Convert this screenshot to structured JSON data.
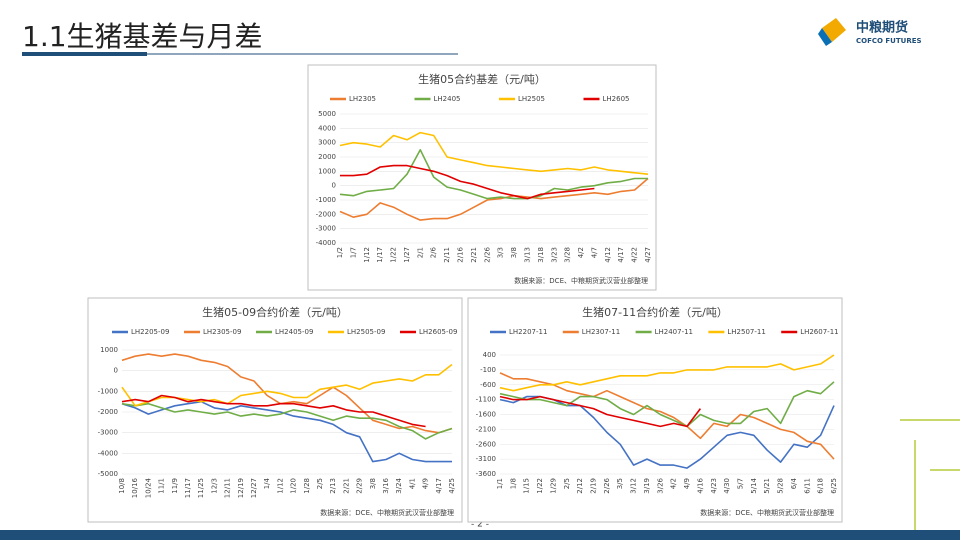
{
  "header": {
    "title": "1.1生猪基差与月差",
    "logo_cn": "中粮期货",
    "logo_en": "COFCO FUTURES",
    "page": "- 2 -"
  },
  "chart_data": [
    {
      "type": "line",
      "title": "生猪05合约基差（元/吨）",
      "source": "数据来源：DCE、中粮期货武汉营业部整理",
      "categories": [
        "1/2",
        "1/7",
        "1/12",
        "1/17",
        "1/22",
        "1/27",
        "2/1",
        "2/6",
        "2/11",
        "2/16",
        "2/21",
        "2/26",
        "3/3",
        "3/8",
        "3/13",
        "3/18",
        "3/23",
        "3/28",
        "4/2",
        "4/7",
        "4/12",
        "4/17",
        "4/22",
        "4/27"
      ],
      "ylim": [
        -4000,
        5000
      ],
      "yticks": [
        5000,
        4000,
        3000,
        2000,
        1000,
        0,
        -1000,
        -2000,
        -3000,
        -4000
      ],
      "series": [
        {
          "name": "LH2305",
          "color": "#ed7d31",
          "values": [
            -1800,
            -2200,
            -2000,
            -1200,
            -1500,
            -2000,
            -2400,
            -2300,
            -2300,
            -2000,
            -1500,
            -1000,
            -900,
            -700,
            -800,
            -900,
            -800,
            -700,
            -600,
            -500,
            -600,
            -400,
            -300,
            500
          ]
        },
        {
          "name": "LH2405",
          "color": "#70ad47",
          "values": [
            -600,
            -700,
            -400,
            -300,
            -200,
            800,
            2500,
            600,
            -100,
            -300,
            -600,
            -900,
            -800,
            -900,
            -900,
            -700,
            -200,
            -300,
            -100,
            0,
            200,
            300,
            500,
            500
          ]
        },
        {
          "name": "LH2505",
          "color": "#ffc000",
          "values": [
            2800,
            3000,
            2900,
            2700,
            3500,
            3200,
            3700,
            3500,
            2000,
            1800,
            1600,
            1400,
            1300,
            1200,
            1100,
            1000,
            1100,
            1200,
            1100,
            1300,
            1100,
            1000,
            900,
            800
          ]
        },
        {
          "name": "LH2605",
          "color": "#e00000",
          "values": [
            700,
            700,
            800,
            1300,
            1400,
            1400,
            1200,
            1000,
            700,
            300,
            100,
            -200,
            -500,
            -700,
            -900,
            -600,
            -500,
            -400,
            -300,
            -200,
            null,
            null,
            null,
            null
          ]
        }
      ]
    },
    {
      "type": "line",
      "title": "生猪05-09合约价差（元/吨）",
      "source": "数据来源：DCE、中粮期货武汉营业部整理",
      "categories": [
        "10/8",
        "10/16",
        "10/24",
        "11/1",
        "11/9",
        "11/17",
        "11/25",
        "12/3",
        "12/11",
        "12/19",
        "12/27",
        "1/4",
        "1/12",
        "1/20",
        "1/28",
        "2/5",
        "2/13",
        "2/21",
        "2/29",
        "3/8",
        "3/16",
        "3/24",
        "4/1",
        "4/9",
        "4/17",
        "4/25"
      ],
      "ylim": [
        -5000,
        1000
      ],
      "yticks": [
        1000,
        0,
        -1000,
        -2000,
        -3000,
        -4000,
        -5000
      ],
      "series": [
        {
          "name": "LH2205-09",
          "color": "#4472c4",
          "values": [
            -1600,
            -1800,
            -2100,
            -1900,
            -1700,
            -1600,
            -1500,
            -1800,
            -1900,
            -1700,
            -1800,
            -1900,
            -2000,
            -2200,
            -2300,
            -2400,
            -2600,
            -3000,
            -3200,
            -4400,
            -4300,
            -4000,
            -4300,
            -4400,
            -4400,
            -4400
          ]
        },
        {
          "name": "LH2305-09",
          "color": "#ed7d31",
          "values": [
            500,
            700,
            800,
            700,
            800,
            700,
            500,
            400,
            200,
            -300,
            -500,
            -1200,
            -1600,
            -1500,
            -1600,
            -1200,
            -800,
            -1200,
            -1800,
            -2400,
            -2600,
            -2800,
            -2700,
            -2900,
            -3000,
            -2800
          ]
        },
        {
          "name": "LH2405-09",
          "color": "#70ad47",
          "values": [
            -1600,
            -1700,
            -1600,
            -1800,
            -2000,
            -1900,
            -2000,
            -2100,
            -2000,
            -2200,
            -2100,
            -2200,
            -2100,
            -1900,
            -2000,
            -2200,
            -2400,
            -2200,
            -2300,
            -2300,
            -2400,
            -2700,
            -2900,
            -3300,
            -3000,
            -2800
          ]
        },
        {
          "name": "LH2505-09",
          "color": "#ffc000",
          "values": [
            -800,
            -1700,
            -1500,
            -1300,
            -1300,
            -1400,
            -1500,
            -1400,
            -1600,
            -1200,
            -1100,
            -1000,
            -1100,
            -1300,
            -1300,
            -900,
            -800,
            -700,
            -900,
            -600,
            -500,
            -400,
            -500,
            -200,
            -200,
            300
          ]
        },
        {
          "name": "LH2605-09",
          "color": "#e00000",
          "values": [
            -1500,
            -1400,
            -1500,
            -1200,
            -1300,
            -1500,
            -1400,
            -1500,
            -1600,
            -1600,
            -1700,
            -1700,
            -1600,
            -1600,
            -1700,
            -1800,
            -1700,
            -1900,
            -2000,
            -2000,
            -2200,
            -2400,
            -2600,
            -2700,
            null,
            null
          ]
        }
      ]
    },
    {
      "type": "line",
      "title": "生猪07-11合约价差（元/吨）",
      "source": "数据来源：DCE、中粮期货武汉营业部整理",
      "categories": [
        "1/1",
        "1/8",
        "1/15",
        "1/22",
        "1/29",
        "2/5",
        "2/12",
        "2/19",
        "2/26",
        "3/5",
        "3/12",
        "3/19",
        "3/26",
        "4/2",
        "4/9",
        "4/16",
        "4/23",
        "4/30",
        "5/7",
        "5/14",
        "5/21",
        "5/28",
        "6/4",
        "6/11",
        "6/18",
        "6/25"
      ],
      "ylim": [
        -3600,
        400
      ],
      "yticks": [
        400,
        -100,
        -600,
        -1100,
        -1600,
        -2100,
        -2600,
        -3100,
        -3600
      ],
      "series": [
        {
          "name": "LH2207-11",
          "color": "#4472c4",
          "values": [
            -1100,
            -1200,
            -1000,
            -1000,
            -1100,
            -1300,
            -1300,
            -1700,
            -2200,
            -2600,
            -3300,
            -3100,
            -3300,
            -3300,
            -3400,
            -3100,
            -2700,
            -2300,
            -2200,
            -2300,
            -2800,
            -3200,
            -2600,
            -2700,
            -2300,
            -1300
          ]
        },
        {
          "name": "LH2307-11",
          "color": "#ed7d31",
          "values": [
            -200,
            -400,
            -400,
            -500,
            -600,
            -800,
            -900,
            -1000,
            -800,
            -1000,
            -1200,
            -1400,
            -1500,
            -1700,
            -2000,
            -2400,
            -1900,
            -2000,
            -1600,
            -1700,
            -1900,
            -2100,
            -2200,
            -2500,
            -2600,
            -3100
          ]
        },
        {
          "name": "LH2407-11",
          "color": "#70ad47",
          "values": [
            -900,
            -1000,
            -1100,
            -1100,
            -1200,
            -1300,
            -1000,
            -1000,
            -1100,
            -1400,
            -1600,
            -1300,
            -1600,
            -1800,
            -2000,
            -1600,
            -1800,
            -1900,
            -1900,
            -1500,
            -1400,
            -1900,
            -1000,
            -800,
            -900,
            -500
          ]
        },
        {
          "name": "LH2507-11",
          "color": "#ffc000",
          "values": [
            -700,
            -800,
            -700,
            -600,
            -600,
            -500,
            -600,
            -500,
            -400,
            -300,
            -300,
            -300,
            -200,
            -200,
            -100,
            -100,
            -100,
            0,
            0,
            0,
            0,
            100,
            -100,
            0,
            100,
            400
          ]
        },
        {
          "name": "LH2607-11",
          "color": "#e00000",
          "values": [
            -1000,
            -1100,
            -1100,
            -1000,
            -1100,
            -1200,
            -1300,
            -1400,
            -1600,
            -1700,
            -1800,
            -1900,
            -2000,
            -1900,
            -2000,
            -1400,
            null,
            null,
            null,
            null,
            null,
            null,
            null,
            null,
            null,
            null
          ]
        }
      ]
    }
  ]
}
